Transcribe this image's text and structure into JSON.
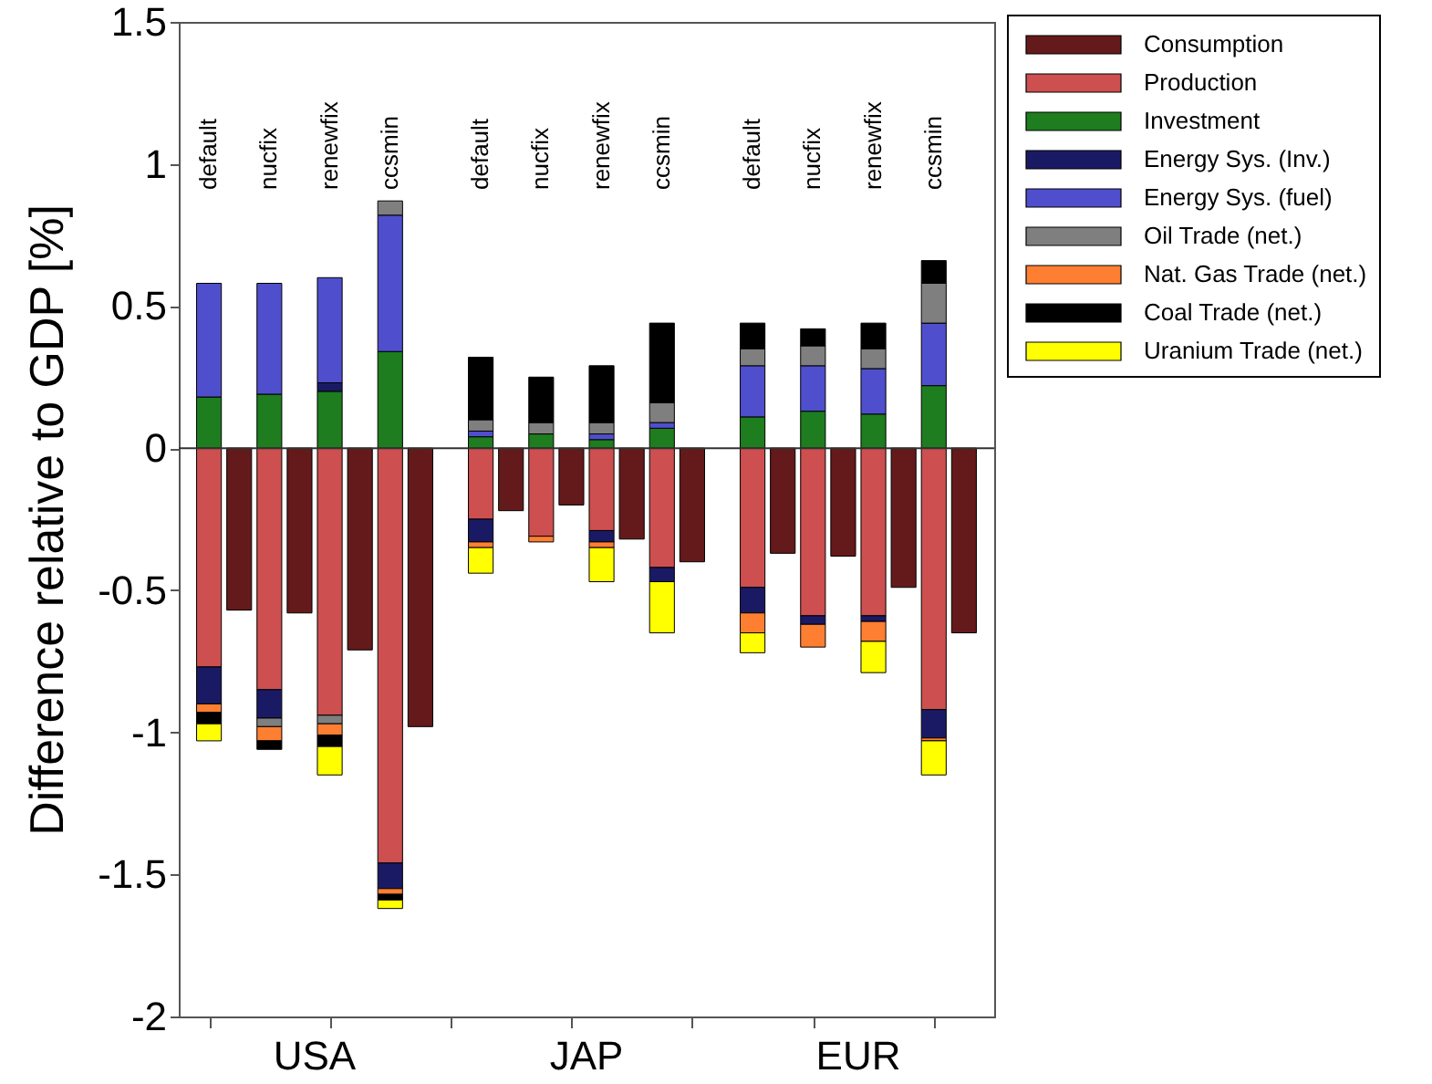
{
  "chart_data": {
    "type": "bar",
    "stacked": true,
    "ylabel": "Difference relative to GDP [%]",
    "categories": [
      "default",
      null,
      "nucfix",
      null,
      "renewfix",
      null,
      "ccsmin",
      null,
      null,
      "default",
      null,
      "nucfix",
      null,
      "renewfix",
      null,
      "ccsmin",
      null,
      null,
      "default",
      null,
      "nucfix",
      null,
      "renewfix",
      null,
      "ccsmin",
      null
    ],
    "annotations": [
      "USA",
      "JAP",
      "EUR"
    ],
    "ylim": [
      -2,
      1.5
    ],
    "yticks": [
      -2,
      -1.5,
      -1,
      -0.5,
      0,
      0.5,
      1,
      1.5
    ],
    "grid": false,
    "legend": "top right",
    "ref_lines": [
      {
        "axis": "y",
        "value": 0,
        "color": "#333333"
      }
    ],
    "series": [
      {
        "name": "Consumption",
        "color": "#641a1a",
        "values": [
          null,
          -0.57,
          null,
          -0.58,
          null,
          -0.71,
          null,
          -0.98,
          null,
          null,
          -0.22,
          null,
          -0.2,
          null,
          -0.32,
          null,
          -0.4,
          null,
          null,
          -0.37,
          null,
          -0.38,
          null,
          -0.49,
          null,
          -0.65
        ]
      },
      {
        "name": "Production",
        "color": "#cd4f4f",
        "values": [
          -0.77,
          null,
          -0.85,
          null,
          -0.94,
          null,
          -1.46,
          null,
          null,
          -0.25,
          null,
          -0.31,
          null,
          -0.29,
          null,
          -0.42,
          null,
          null,
          -0.49,
          null,
          -0.59,
          null,
          -0.59,
          null,
          -0.92,
          null
        ]
      },
      {
        "name": "Investment",
        "color": "#1e7d1e",
        "values": [
          0.18,
          null,
          0.19,
          null,
          0.2,
          null,
          0.34,
          null,
          null,
          0.04,
          null,
          0.05,
          null,
          0.03,
          null,
          0.07,
          null,
          null,
          0.11,
          null,
          0.13,
          null,
          0.12,
          null,
          0.22,
          null
        ]
      },
      {
        "name": "Energy Sys. (Inv.)",
        "color": "#1a1a64",
        "values": [
          -0.13,
          null,
          -0.1,
          null,
          0.03,
          null,
          -0.09,
          null,
          null,
          -0.08,
          null,
          null,
          null,
          -0.04,
          null,
          -0.05,
          null,
          null,
          -0.09,
          null,
          -0.03,
          null,
          -0.02,
          null,
          -0.1,
          null
        ]
      },
      {
        "name": "Energy Sys. (fuel)",
        "color": "#4f4fcd",
        "values": [
          0.4,
          null,
          0.39,
          null,
          0.37,
          null,
          0.48,
          null,
          null,
          0.02,
          null,
          null,
          null,
          0.02,
          null,
          0.02,
          null,
          null,
          0.18,
          null,
          0.16,
          null,
          0.16,
          null,
          0.22,
          null
        ]
      },
      {
        "name": "Oil Trade (net.)",
        "color": "#7f7f7f",
        "values": [
          null,
          null,
          -0.03,
          null,
          -0.03,
          null,
          0.05,
          null,
          null,
          0.04,
          null,
          0.04,
          null,
          0.04,
          null,
          0.07,
          null,
          null,
          0.06,
          null,
          0.07,
          null,
          0.07,
          null,
          0.14,
          null
        ]
      },
      {
        "name": "Nat. Gas Trade (net.)",
        "color": "#ff7f32",
        "values": [
          -0.03,
          null,
          -0.05,
          null,
          -0.04,
          null,
          -0.02,
          null,
          null,
          -0.02,
          null,
          -0.02,
          null,
          -0.02,
          null,
          null,
          null,
          null,
          -0.07,
          null,
          -0.08,
          null,
          -0.07,
          null,
          -0.01,
          null
        ]
      },
      {
        "name": "Coal Trade (net.)",
        "color": "#000000",
        "values": [
          -0.04,
          null,
          -0.03,
          null,
          -0.04,
          null,
          -0.02,
          null,
          null,
          0.22,
          null,
          0.16,
          null,
          0.2,
          null,
          0.28,
          null,
          null,
          0.09,
          null,
          0.06,
          null,
          0.09,
          null,
          0.08,
          null
        ]
      },
      {
        "name": "Uranium Trade (net.)",
        "color": "#ffff00",
        "values": [
          -0.06,
          null,
          null,
          null,
          -0.1,
          null,
          -0.03,
          null,
          null,
          -0.09,
          null,
          null,
          null,
          -0.12,
          null,
          -0.18,
          null,
          null,
          -0.07,
          null,
          null,
          null,
          -0.11,
          null,
          -0.12,
          null
        ]
      }
    ]
  }
}
